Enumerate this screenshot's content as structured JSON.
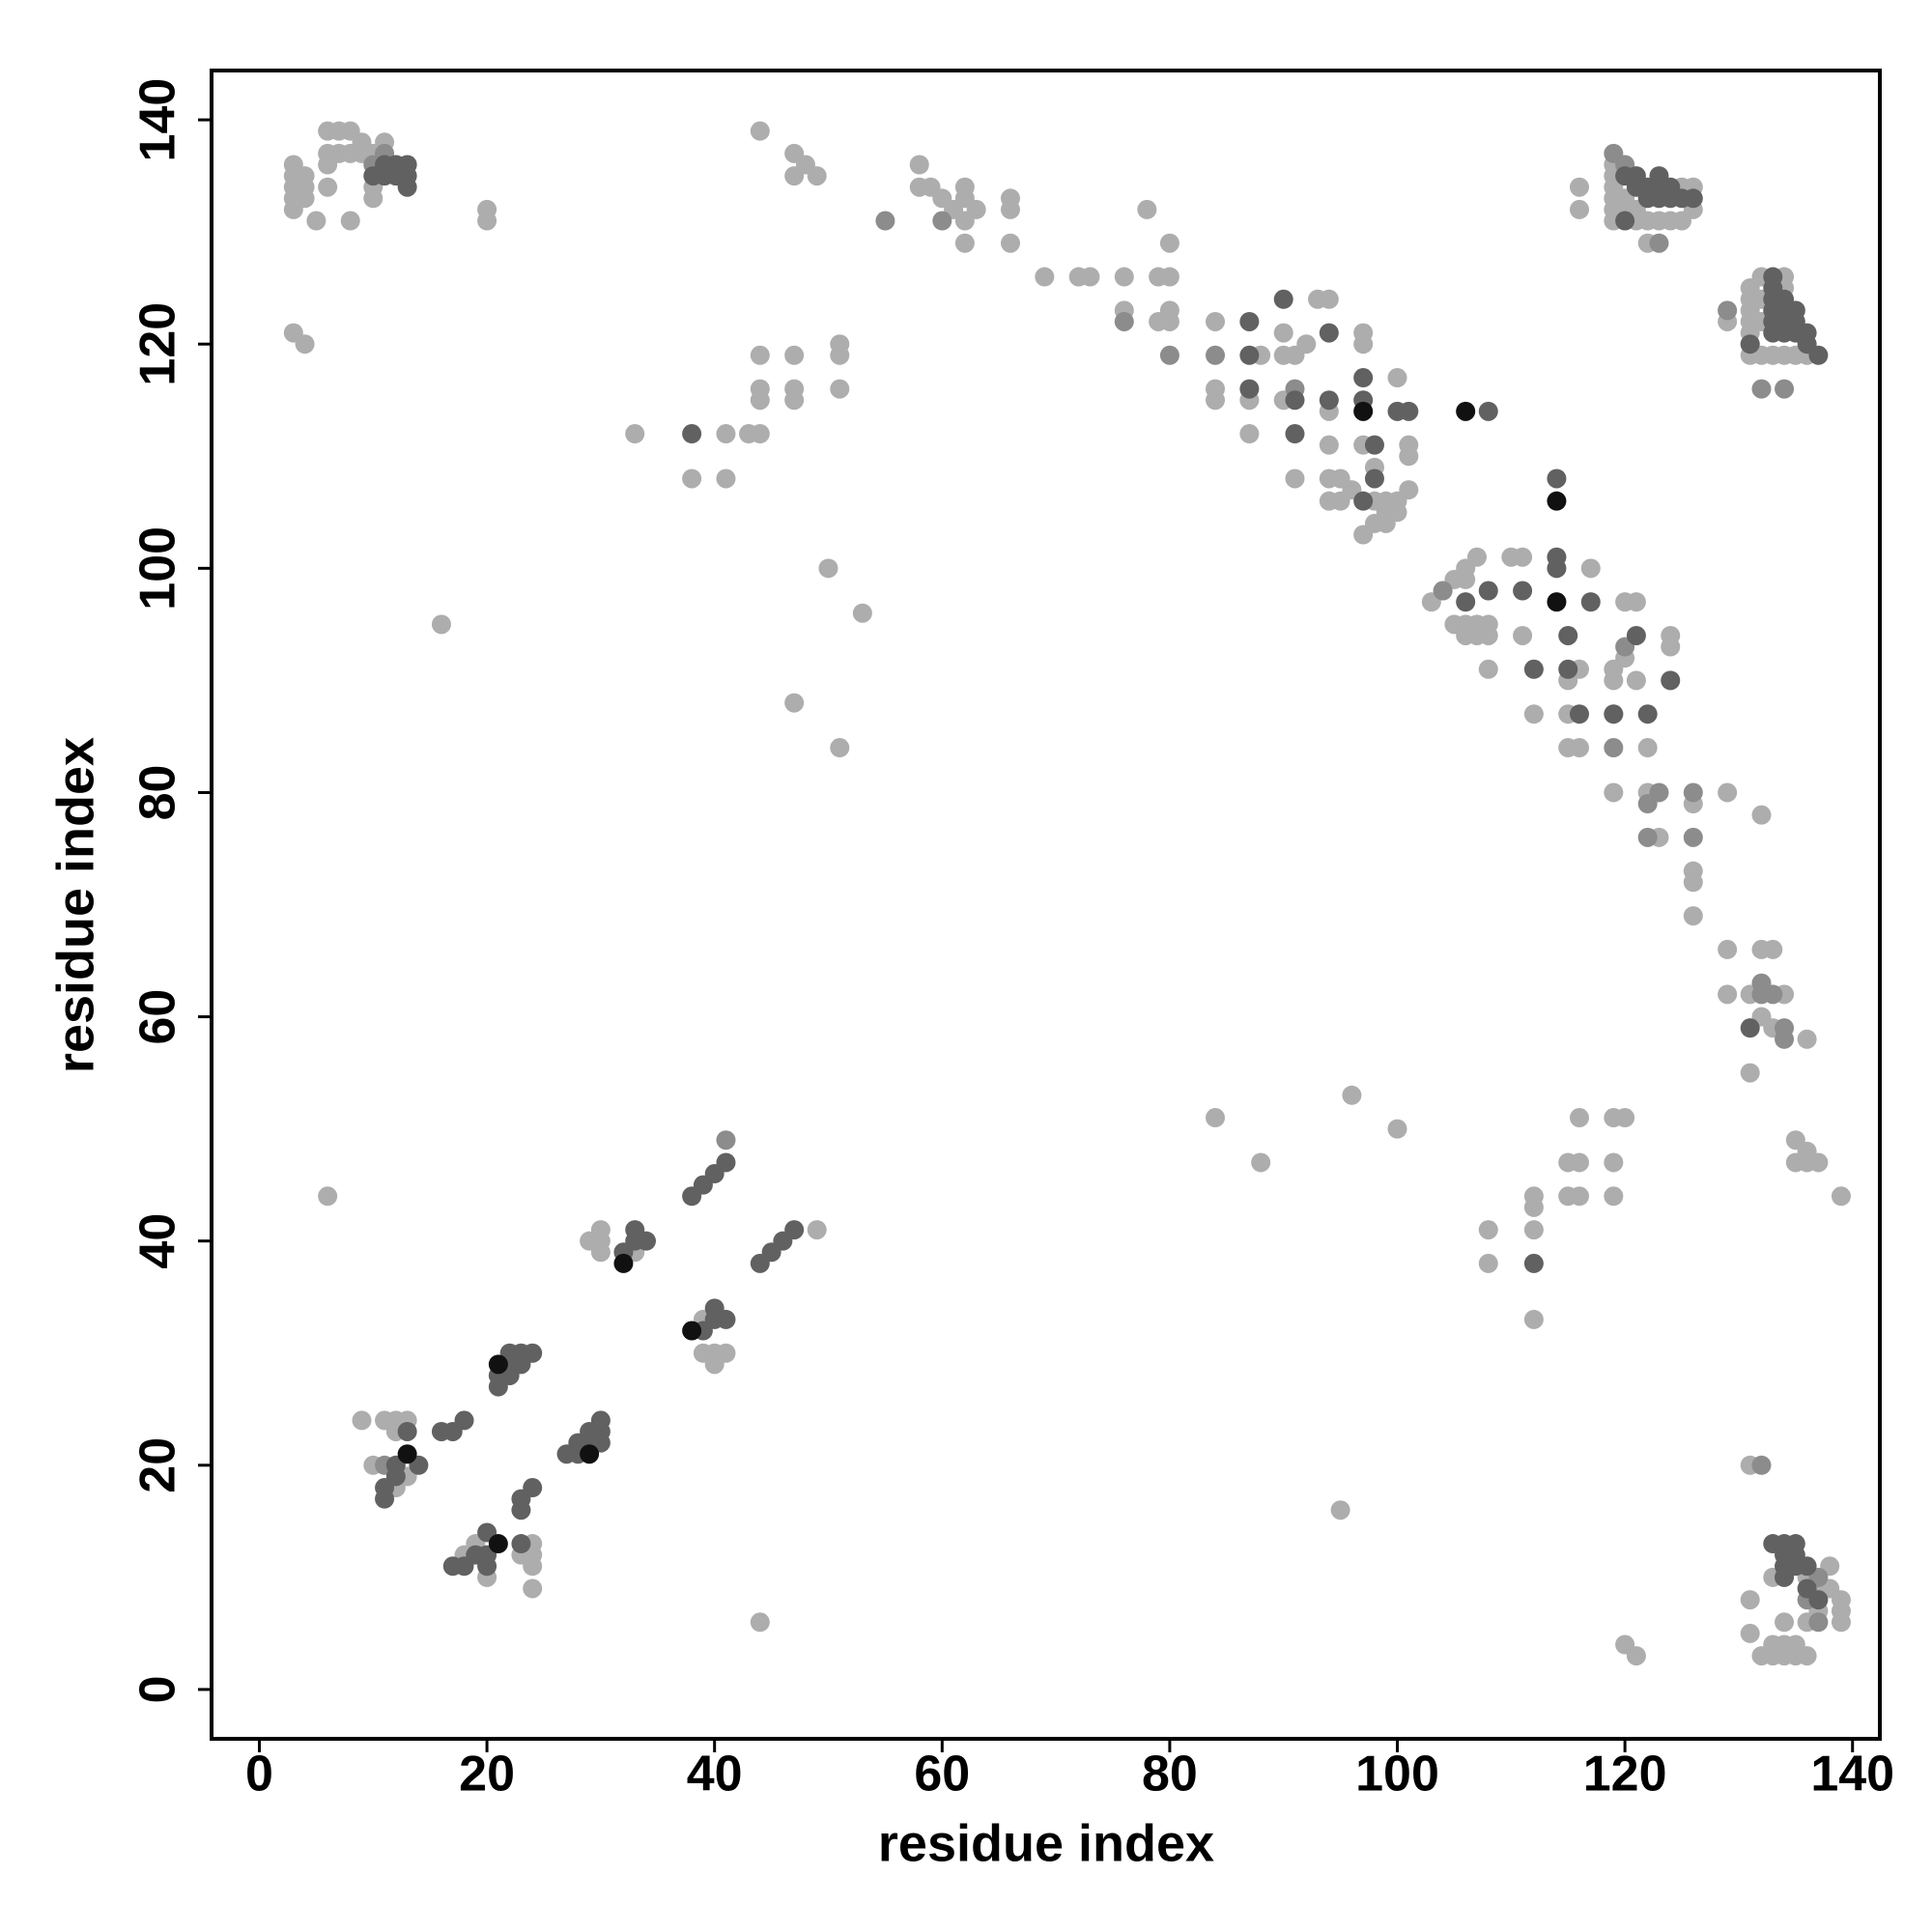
{
  "chart_data": {
    "type": "scatter",
    "xlabel": "residue index",
    "ylabel": "residue index",
    "xlim": [
      -4.2,
      142.4
    ],
    "ylim": [
      -4.4,
      144.4
    ],
    "xticks": [
      0,
      20,
      40,
      60,
      80,
      100,
      120,
      140
    ],
    "yticks": [
      0,
      20,
      40,
      60,
      80,
      100,
      120,
      140
    ],
    "grid": false,
    "series": [
      {
        "color": "#adadad",
        "x": [
          3,
          3,
          3,
          3,
          3,
          4,
          4,
          4,
          5,
          6,
          7,
          8,
          6,
          7,
          8,
          9,
          9,
          10,
          11,
          6,
          6,
          8,
          10,
          10,
          3,
          4,
          20,
          20,
          16,
          6,
          44,
          95,
          44,
          47,
          48,
          47,
          49,
          58,
          58,
          59,
          60,
          61,
          62,
          62,
          62,
          63,
          66,
          66,
          66,
          62,
          69,
          72,
          73,
          76,
          76,
          78,
          79,
          80,
          80,
          80,
          80,
          79,
          33,
          38,
          41,
          41,
          43,
          44,
          44,
          44,
          44,
          47,
          47,
          47,
          51,
          51,
          51,
          50,
          53,
          47,
          51,
          84,
          84,
          84,
          88,
          87,
          87,
          90,
          90,
          91,
          90,
          91,
          92,
          93,
          94,
          94,
          94,
          94,
          95,
          94,
          95,
          96,
          97,
          97,
          97,
          98,
          100,
          98,
          99,
          99,
          100,
          100,
          101,
          101,
          101,
          97,
          98,
          99,
          103,
          104,
          105,
          106,
          106,
          105,
          106,
          106,
          107,
          107,
          108,
          108,
          107,
          108,
          110,
          111,
          111,
          112,
          115,
          115,
          115,
          116,
          116,
          117,
          119,
          119,
          119,
          120,
          120,
          121,
          121,
          122,
          124,
          124,
          119,
          122,
          123,
          126,
          126,
          126,
          126,
          129,
          132,
          116,
          116,
          119,
          119,
          119,
          119,
          119,
          119,
          120,
          120,
          121,
          121,
          122,
          122,
          123,
          124,
          125,
          125,
          126,
          126,
          129,
          131,
          131,
          131,
          131,
          131,
          131,
          131,
          132,
          132,
          132,
          132,
          133,
          134,
          134,
          135,
          136,
          134,
          129,
          129,
          131,
          132,
          132,
          133,
          133,
          134,
          136,
          135,
          136,
          135,
          136,
          137,
          139,
          131,
          84,
          88,
          96,
          100,
          108,
          108,
          112,
          112,
          112,
          112,
          115,
          115,
          116,
          116,
          116,
          119,
          120,
          119,
          119,
          120,
          121,
          131,
          131,
          131,
          132,
          133,
          133,
          134,
          134,
          135,
          135,
          136,
          133,
          136,
          137,
          137,
          138,
          138,
          139,
          139,
          139,
          134,
          136,
          9,
          10,
          11,
          12,
          13,
          12,
          13,
          12,
          18,
          19,
          20,
          23,
          24,
          24,
          24,
          24,
          29,
          30,
          30,
          30,
          33,
          39,
          39,
          40,
          40,
          41,
          49
        ],
        "values": [
          136,
          135,
          134,
          133,
          132,
          135,
          134,
          133,
          131,
          139,
          139,
          139,
          137,
          137,
          137,
          138,
          137,
          137,
          138,
          136,
          134,
          131,
          133,
          134,
          121,
          120,
          132,
          131,
          95,
          44,
          6,
          16,
          139,
          137,
          136,
          135,
          135,
          136,
          134,
          134,
          133,
          132,
          134,
          133,
          131,
          132,
          133,
          132,
          129,
          129,
          126,
          126,
          126,
          126,
          123,
          132,
          126,
          126,
          129,
          123,
          122,
          122,
          112,
          108,
          112,
          108,
          112,
          112,
          119,
          116,
          115,
          119,
          116,
          115,
          120,
          119,
          116,
          100,
          96,
          88,
          84,
          122,
          116,
          115,
          119,
          115,
          112,
          121,
          119,
          119,
          115,
          108,
          120,
          124,
          124,
          114,
          111,
          108,
          108,
          106,
          106,
          107,
          121,
          120,
          111,
          109,
          117,
          106,
          106,
          105,
          105,
          106,
          107,
          111,
          110,
          103,
          104,
          104,
          97,
          98,
          99,
          100,
          99,
          95,
          95,
          94,
          101,
          94,
          95,
          94,
          95,
          91,
          101,
          101,
          94,
          87,
          90,
          87,
          84,
          84,
          91,
          100,
          91,
          90,
          87,
          97,
          92,
          97,
          90,
          84,
          94,
          93,
          80,
          80,
          76,
          79,
          73,
          72,
          69,
          80,
          78,
          134,
          132,
          136,
          135,
          134,
          133,
          132,
          131,
          133,
          132,
          132,
          131,
          131,
          129,
          131,
          131,
          131,
          134,
          134,
          132,
          122,
          125,
          124,
          123,
          122,
          121,
          120,
          119,
          126,
          124,
          122,
          119,
          119,
          126,
          119,
          119,
          119,
          125,
          66,
          62,
          62,
          66,
          60,
          66,
          59,
          62,
          58,
          49,
          48,
          47,
          47,
          47,
          44,
          55,
          51,
          47,
          53,
          50,
          41,
          38,
          44,
          43,
          41,
          33,
          47,
          44,
          47,
          44,
          51,
          51,
          51,
          47,
          44,
          4,
          3,
          20,
          8,
          5,
          3,
          3,
          4,
          3,
          4,
          3,
          4,
          3,
          10,
          6,
          7,
          9,
          11,
          9,
          8,
          7,
          6,
          6,
          10,
          24,
          20,
          24,
          24,
          24,
          18,
          19,
          23,
          12,
          13,
          10,
          12,
          13,
          12,
          11,
          9,
          40,
          40,
          39,
          41,
          39,
          33,
          30,
          29,
          30,
          30,
          41
        ]
      },
      {
        "color": "#8c8c8c",
        "x": [
          10,
          11,
          55,
          60,
          76,
          80,
          84,
          91,
          104,
          119,
          122,
          123,
          126,
          126,
          122,
          120,
          119,
          120,
          123,
          129,
          132,
          134,
          132,
          132,
          133,
          134,
          134,
          132,
          137,
          137,
          136,
          11,
          41
        ],
        "values": [
          136,
          137,
          131,
          131,
          122,
          119,
          119,
          116,
          98,
          84,
          79,
          80,
          80,
          76,
          76,
          93,
          137,
          136,
          129,
          123,
          116,
          116,
          63,
          62,
          62,
          58,
          59,
          20,
          10,
          6,
          8,
          20,
          49
        ]
      },
      {
        "color": "#616161",
        "x": [
          10,
          11,
          12,
          12,
          13,
          13,
          13,
          11,
          38,
          87,
          87,
          90,
          91,
          91,
          94,
          94,
          97,
          97,
          98,
          98,
          100,
          101,
          97,
          108,
          87,
          106,
          108,
          111,
          112,
          114,
          114,
          114,
          115,
          115,
          116,
          119,
          121,
          122,
          124,
          117,
          120,
          120,
          121,
          121,
          122,
          122,
          123,
          123,
          123,
          124,
          124,
          125,
          126,
          131,
          133,
          133,
          133,
          133,
          133,
          133,
          134,
          134,
          134,
          134,
          135,
          135,
          135,
          136,
          136,
          137,
          131,
          112,
          133,
          134,
          135,
          134,
          135,
          134,
          135,
          134,
          136,
          136,
          137,
          11,
          11,
          12,
          12,
          13,
          14,
          16,
          17,
          18,
          17,
          18,
          19,
          20,
          20,
          20,
          23,
          23,
          24,
          23,
          21,
          21,
          22,
          22,
          22,
          23,
          23,
          24,
          27,
          28,
          28,
          29,
          29,
          30,
          30,
          30,
          32,
          33,
          33,
          34,
          38,
          39,
          40,
          41,
          39,
          40,
          40,
          41,
          44,
          45,
          46,
          47
        ],
        "values": [
          135,
          135,
          135,
          136,
          136,
          135,
          134,
          136,
          112,
          122,
          116,
          124,
          115,
          112,
          121,
          115,
          117,
          115,
          111,
          108,
          114,
          114,
          106,
          114,
          119,
          97,
          98,
          98,
          91,
          101,
          100,
          108,
          94,
          91,
          87,
          87,
          94,
          87,
          90,
          97,
          135,
          131,
          135,
          134,
          134,
          133,
          135,
          134,
          133,
          134,
          133,
          133,
          133,
          120,
          126,
          125,
          124,
          123,
          122,
          121,
          124,
          123,
          122,
          121,
          123,
          122,
          121,
          121,
          120,
          119,
          59,
          38,
          13,
          13,
          13,
          12,
          12,
          11,
          11,
          10,
          11,
          9,
          8,
          18,
          17,
          20,
          19,
          23,
          20,
          23,
          23,
          24,
          11,
          11,
          12,
          12,
          11,
          14,
          17,
          16,
          18,
          13,
          27,
          28,
          28,
          29,
          30,
          29,
          30,
          30,
          21,
          21,
          22,
          22,
          23,
          22,
          23,
          24,
          39,
          41,
          40,
          40,
          44,
          45,
          46,
          47,
          32,
          34,
          33,
          33,
          38,
          39,
          40,
          41
        ]
      },
      {
        "color": "#111111",
        "x": [
          13,
          21,
          21,
          29,
          32,
          38,
          97,
          106,
          114,
          114
        ],
        "values": [
          21,
          13,
          29,
          21,
          38,
          32,
          114,
          114,
          106,
          97
        ]
      }
    ]
  }
}
